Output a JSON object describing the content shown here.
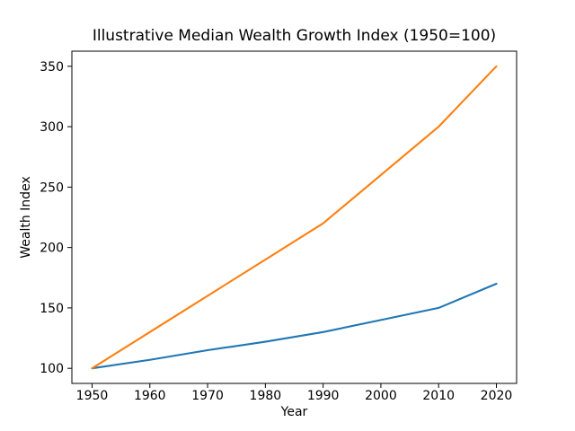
{
  "figure": {
    "background": "#ffffff",
    "text_color": "#000000",
    "spine_color": "#000000"
  },
  "chart_data": {
    "type": "line",
    "title": "Illustrative Median Wealth Growth Index (1950=100)",
    "xlabel": "Year",
    "ylabel": "Wealth Index",
    "x": [
      1950,
      1960,
      1970,
      1980,
      1990,
      2000,
      2010,
      2020
    ],
    "series": [
      {
        "name": "blue-line",
        "color": "#1f77b4",
        "values": [
          100,
          107,
          115,
          122,
          130,
          140,
          150,
          170
        ]
      },
      {
        "name": "orange-line",
        "color": "#ff7f0e",
        "values": [
          100,
          130,
          160,
          190,
          220,
          260,
          300,
          350
        ]
      }
    ],
    "xticks": [
      1950,
      1960,
      1970,
      1980,
      1990,
      2000,
      2010,
      2020
    ],
    "yticks": [
      100,
      150,
      200,
      250,
      300,
      350
    ],
    "xlim": [
      1946.5,
      2023.5
    ],
    "ylim": [
      87.5,
      362.5
    ],
    "grid": false,
    "legend_position": "none",
    "line_width": 2.1
  }
}
